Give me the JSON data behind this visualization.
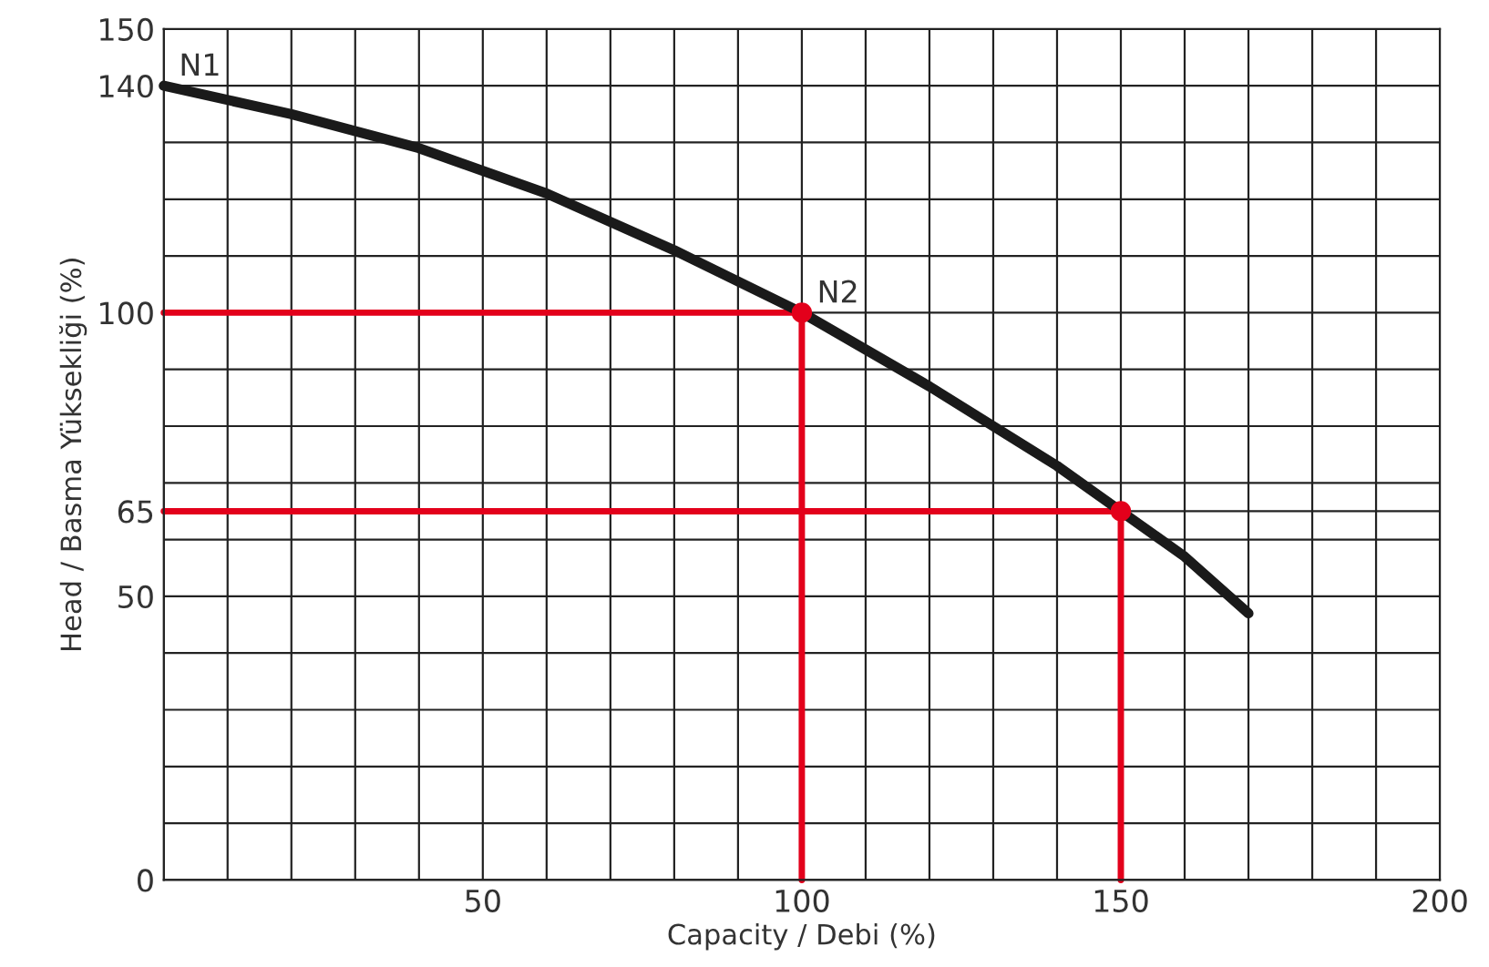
{
  "chart_data": {
    "type": "line",
    "xlabel": "Capacity / Debi (%)",
    "ylabel": "Head / Basma Yüksekliği (%)",
    "xlim": [
      0,
      200
    ],
    "ylim": [
      0,
      150
    ],
    "xticks": [
      {
        "value": 0,
        "label": null
      },
      {
        "value": 10,
        "label": null
      },
      {
        "value": 20,
        "label": null
      },
      {
        "value": 30,
        "label": null
      },
      {
        "value": 40,
        "label": null
      },
      50,
      {
        "value": 60,
        "label": null
      },
      {
        "value": 70,
        "label": null
      },
      {
        "value": 80,
        "label": null
      },
      {
        "value": 90,
        "label": null
      },
      100,
      {
        "value": 110,
        "label": null
      },
      {
        "value": 120,
        "label": null
      },
      {
        "value": 130,
        "label": null
      },
      {
        "value": 140,
        "label": null
      },
      150,
      {
        "value": 160,
        "label": null
      },
      {
        "value": 170,
        "label": null
      },
      {
        "value": 180,
        "label": null
      },
      {
        "value": 190,
        "label": null
      },
      200
    ],
    "yticks": [
      0,
      {
        "value": 10,
        "label": null
      },
      {
        "value": 20,
        "label": null
      },
      {
        "value": 30,
        "label": null
      },
      {
        "value": 40,
        "label": null
      },
      50,
      {
        "value": 60,
        "label": null
      },
      65,
      {
        "value": 70,
        "label": null
      },
      {
        "value": 80,
        "label": null
      },
      {
        "value": 90,
        "label": null
      },
      100,
      {
        "value": 110,
        "label": null
      },
      {
        "value": 120,
        "label": null
      },
      {
        "value": 130,
        "label": null
      },
      140,
      150
    ],
    "grid": true,
    "series": [
      {
        "color": "#1a1a1a",
        "x": [
          0,
          20,
          40,
          60,
          80,
          100,
          120,
          140,
          150,
          160,
          170
        ],
        "values": [
          140,
          135,
          129,
          121,
          111,
          100,
          87,
          73,
          65,
          57,
          47
        ]
      },
      {
        "color": "#e3001b",
        "x": [
          0,
          100,
          100
        ],
        "values": [
          100,
          100,
          0
        ]
      },
      {
        "color": "#e3001b",
        "x": [
          0,
          150,
          150
        ],
        "values": [
          65,
          65,
          0
        ]
      },
      {
        "type": "scatter",
        "color": "#e3001b",
        "marker": "circle",
        "x": [
          100,
          150
        ],
        "values": [
          100,
          65
        ]
      }
    ],
    "annotations": [
      {
        "text": "N1",
        "x": 0,
        "y": 140
      },
      {
        "text": "N2",
        "x": 100,
        "y": 100
      }
    ]
  }
}
